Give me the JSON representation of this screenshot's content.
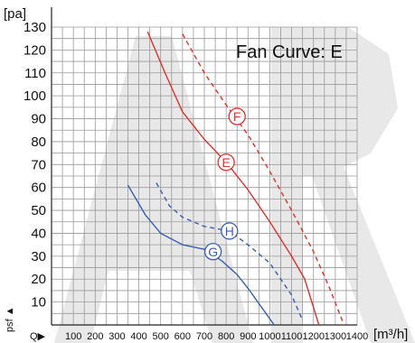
{
  "chart_data": {
    "type": "line",
    "title": "Fan Curve: E",
    "ylabel": "[pa]",
    "xlabel": "[m³/h]",
    "x_prefix": "Q▶",
    "y_prefix": "psf ▲",
    "xlim": [
      0,
      1400
    ],
    "ylim": [
      0,
      130
    ],
    "x_ticks": [
      100,
      200,
      300,
      400,
      500,
      600,
      700,
      800,
      900,
      1000,
      1100,
      1200,
      1300,
      1400
    ],
    "y_ticks": [
      10,
      20,
      30,
      40,
      50,
      60,
      70,
      80,
      90,
      100,
      110,
      120,
      130
    ],
    "grid": true,
    "series": [
      {
        "name": "E",
        "color": "#e0322d",
        "style": "solid",
        "label_at": [
          800,
          71
        ],
        "points": [
          [
            440,
            128
          ],
          [
            520,
            110
          ],
          [
            600,
            93
          ],
          [
            700,
            81
          ],
          [
            800,
            71
          ],
          [
            900,
            59
          ],
          [
            1000,
            45
          ],
          [
            1100,
            30
          ],
          [
            1160,
            20
          ],
          [
            1225,
            0
          ]
        ]
      },
      {
        "name": "F",
        "color": "#e0322d",
        "style": "dashed",
        "label_at": [
          850,
          91
        ],
        "points": [
          [
            600,
            127
          ],
          [
            700,
            110
          ],
          [
            800,
            96
          ],
          [
            900,
            83
          ],
          [
            1000,
            67
          ],
          [
            1100,
            50
          ],
          [
            1200,
            32
          ],
          [
            1270,
            17
          ],
          [
            1340,
            0
          ]
        ]
      },
      {
        "name": "G",
        "color": "#3b5fb0",
        "style": "solid",
        "label_at": [
          740,
          32
        ],
        "points": [
          [
            350,
            61
          ],
          [
            430,
            48
          ],
          [
            500,
            40
          ],
          [
            600,
            35
          ],
          [
            700,
            33
          ],
          [
            780,
            28
          ],
          [
            850,
            22
          ],
          [
            900,
            16
          ],
          [
            960,
            8
          ],
          [
            1020,
            0
          ]
        ]
      },
      {
        "name": "H",
        "color": "#3b5fb0",
        "style": "dashed",
        "label_at": [
          815,
          41
        ],
        "points": [
          [
            480,
            62
          ],
          [
            540,
            52
          ],
          [
            600,
            47
          ],
          [
            700,
            43
          ],
          [
            815,
            41
          ],
          [
            900,
            35
          ],
          [
            1000,
            27
          ],
          [
            1100,
            13
          ],
          [
            1150,
            2
          ]
        ]
      }
    ]
  }
}
